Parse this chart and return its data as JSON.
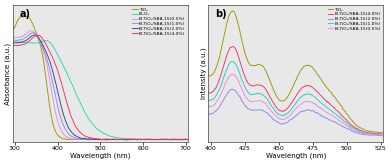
{
  "panel_a": {
    "title": "a)",
    "xlabel": "Wavelength (nm)",
    "ylabel": "Absorbance (a.u.)",
    "xlim": [
      295,
      705
    ],
    "xticks": [
      300,
      400,
      500,
      600,
      700
    ],
    "legend_labels": [
      "TiO₂",
      "Bi₂O₃",
      "Bi-TiO₂/SBA-15(0.5%)",
      "Bi-TiO₂/SBA-15(1.0%)",
      "Bi-TiO₂/SBA-15(2.0%)",
      "Bi-TiO₂/SBA-15(4.0%)"
    ],
    "colors": [
      "#999900",
      "#22DDAA",
      "#EE88DD",
      "#8888EE",
      "#334488",
      "#EE3366"
    ]
  },
  "panel_b": {
    "title": "b)",
    "xlabel": "Wavelength (nm)",
    "ylabel": "Intensity (a.u.)",
    "xlim": [
      398,
      527
    ],
    "xticks": [
      400,
      425,
      450,
      475,
      500,
      525
    ],
    "legend_labels": [
      "TiO₂",
      "Bi-TiO₂/SBA-15(4.0%)",
      "Bi-TiO₂/SBA-15(2.0%)",
      "Bi-TiO₂/SBA-15(1.0%)",
      "Bi-TiO₂/SBA-15(0.5%)"
    ],
    "colors": [
      "#999900",
      "#EE3366",
      "#8888EE",
      "#22CCCC",
      "#EE88DD"
    ]
  },
  "background_color": "#ffffff",
  "axes_bg": "#e8e8e8"
}
